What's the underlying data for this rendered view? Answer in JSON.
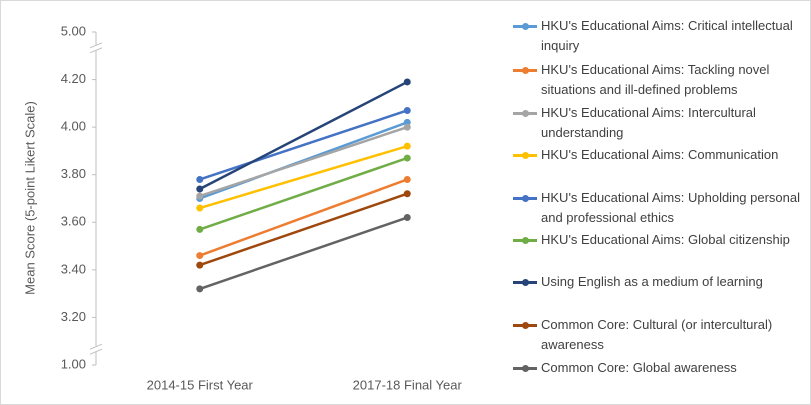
{
  "chart_data": {
    "type": "line",
    "y_label": "Mean Score (5-point Likert Scale)",
    "categories": [
      "2014-15 First Year",
      "2017-18 Final Year"
    ],
    "series": [
      {
        "name": "HKU's Educational Aims: Critical intellectual inquiry",
        "color": "#5b9bd5",
        "values": [
          3.7,
          4.02
        ]
      },
      {
        "name": "HKU's Educational Aims: Tackling novel situations and ill-defined problems",
        "color": "#ed7d31",
        "values": [
          3.46,
          3.78
        ]
      },
      {
        "name": "HKU's Educational Aims: Intercultural understanding",
        "color": "#a5a5a5",
        "values": [
          3.71,
          4.0
        ]
      },
      {
        "name": "HKU's Educational Aims: Communication",
        "color": "#ffc000",
        "values": [
          3.66,
          3.92
        ]
      },
      {
        "name": "HKU's Educational Aims: Upholding personal and professional ethics",
        "color": "#4472c4",
        "values": [
          3.78,
          4.07
        ]
      },
      {
        "name": "HKU's Educational Aims: Global citizenship",
        "color": "#70ad47",
        "values": [
          3.57,
          3.87
        ]
      },
      {
        "name": "Using English as a medium of learning",
        "color": "#264478",
        "values": [
          3.74,
          4.19
        ]
      },
      {
        "name": "Common Core: Cultural (or intercultural) awareness",
        "color": "#9e480e",
        "values": [
          3.42,
          3.72
        ]
      },
      {
        "name": "Common Core: Global awareness",
        "color": "#636363",
        "values": [
          3.32,
          3.62
        ]
      }
    ],
    "ylim": [
      1,
      5
    ],
    "yticks": [
      {
        "value": 1,
        "label": "1.00"
      },
      {
        "value": 3.2,
        "label": "3.20"
      },
      {
        "value": 3.4,
        "label": "3.40"
      },
      {
        "value": 3.6,
        "label": "3.60"
      },
      {
        "value": 3.8,
        "label": "3.80"
      },
      {
        "value": 4,
        "label": "4.00"
      },
      {
        "value": 4.2,
        "label": "4.20"
      },
      {
        "value": 5,
        "label": "5.00"
      }
    ],
    "axis_break": true,
    "legend": "right"
  }
}
